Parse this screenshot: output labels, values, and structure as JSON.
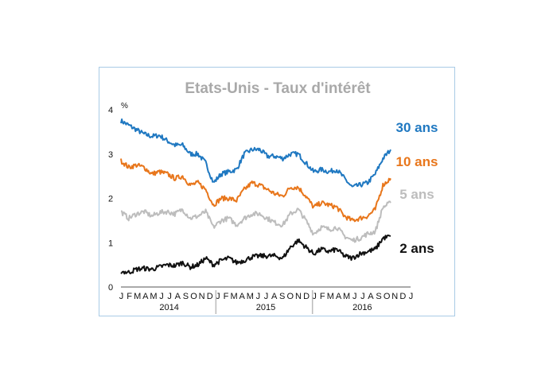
{
  "chart_data": {
    "type": "line",
    "title": "Etats-Unis - Taux d'intérêt",
    "unit_label": "%",
    "ylim": [
      0,
      4
    ],
    "yticks": [
      "0",
      "1",
      "2",
      "3",
      "4"
    ],
    "grid": false,
    "month_labels": [
      "J",
      "F",
      "M",
      "A",
      "M",
      "J",
      "J",
      "A",
      "S",
      "O",
      "N",
      "D",
      "J",
      "F",
      "M",
      "A",
      "M",
      "J",
      "J",
      "A",
      "S",
      "O",
      "N",
      "D",
      "J",
      "F",
      "M",
      "A",
      "M",
      "J",
      "J",
      "A",
      "S",
      "O",
      "N",
      "D",
      "J"
    ],
    "year_labels": [
      "2014",
      "2015",
      "2016"
    ],
    "colors": {
      "30 ans": "#1f78c1",
      "10 ans": "#e8761b",
      "5 ans": "#bdbdbd",
      "2 ans": "#111111"
    },
    "x": [
      "2014-01",
      "2014-02",
      "2014-03",
      "2014-04",
      "2014-05",
      "2014-06",
      "2014-07",
      "2014-08",
      "2014-09",
      "2014-10",
      "2014-11",
      "2014-12",
      "2015-01",
      "2015-02",
      "2015-03",
      "2015-04",
      "2015-05",
      "2015-06",
      "2015-07",
      "2015-08",
      "2015-09",
      "2015-10",
      "2015-11",
      "2015-12",
      "2016-01",
      "2016-02",
      "2016-03",
      "2016-04",
      "2016-05",
      "2016-06",
      "2016-07",
      "2016-08",
      "2016-09",
      "2016-10",
      "2016-11",
      "2016-12"
    ],
    "series": [
      {
        "name": "30 ans",
        "values": [
          3.75,
          3.65,
          3.55,
          3.45,
          3.4,
          3.42,
          3.3,
          3.2,
          3.2,
          3.0,
          3.0,
          2.8,
          2.35,
          2.55,
          2.6,
          2.65,
          3.0,
          3.1,
          3.1,
          2.95,
          2.95,
          2.9,
          3.0,
          3.0,
          2.8,
          2.6,
          2.65,
          2.6,
          2.65,
          2.45,
          2.25,
          2.3,
          2.35,
          2.55,
          2.9,
          3.1
        ]
      },
      {
        "name": "10 ans",
        "values": [
          2.85,
          2.7,
          2.75,
          2.7,
          2.55,
          2.6,
          2.55,
          2.45,
          2.5,
          2.3,
          2.35,
          2.2,
          1.85,
          2.0,
          2.0,
          1.95,
          2.2,
          2.35,
          2.3,
          2.2,
          2.1,
          2.05,
          2.25,
          2.25,
          2.05,
          1.8,
          1.9,
          1.85,
          1.8,
          1.6,
          1.5,
          1.55,
          1.6,
          1.75,
          2.3,
          2.45
        ]
      },
      {
        "name": "5 ans",
        "values": [
          1.7,
          1.55,
          1.65,
          1.7,
          1.6,
          1.68,
          1.7,
          1.65,
          1.75,
          1.55,
          1.6,
          1.7,
          1.35,
          1.5,
          1.55,
          1.4,
          1.55,
          1.65,
          1.65,
          1.55,
          1.45,
          1.4,
          1.65,
          1.75,
          1.5,
          1.2,
          1.35,
          1.3,
          1.35,
          1.15,
          1.05,
          1.1,
          1.2,
          1.25,
          1.8,
          1.9
        ]
      },
      {
        "name": "2 ans",
        "values": [
          0.35,
          0.33,
          0.4,
          0.42,
          0.4,
          0.45,
          0.5,
          0.48,
          0.55,
          0.45,
          0.5,
          0.65,
          0.5,
          0.6,
          0.65,
          0.55,
          0.6,
          0.68,
          0.7,
          0.7,
          0.7,
          0.65,
          0.9,
          1.05,
          0.9,
          0.75,
          0.85,
          0.8,
          0.85,
          0.7,
          0.65,
          0.75,
          0.8,
          0.85,
          1.1,
          1.15
        ]
      }
    ]
  }
}
